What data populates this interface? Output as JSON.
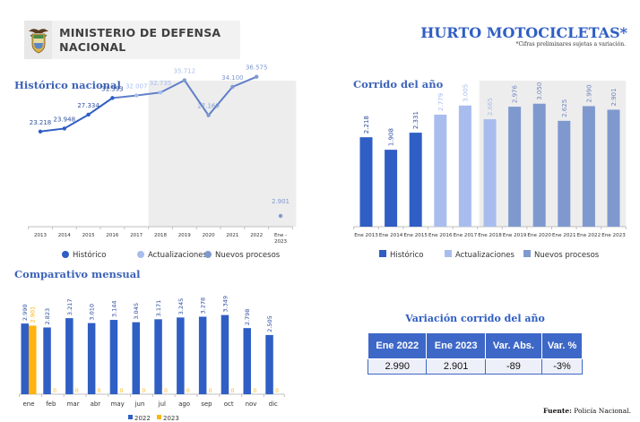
{
  "header": {
    "ministry": "MINISTERIO DE DEFENSA NACIONAL",
    "title": "HURTO MOTOCICLETAS*",
    "note": "*Cifras preliminares sujetas a variación."
  },
  "colors": {
    "historico": "#2f5ec4",
    "actualizaciones": "#a8bdee",
    "nuevos_procesos": "#7f99cf",
    "y2022": "#2f5ec4",
    "y2023": "#ffb30f",
    "shade": "#ededed",
    "title": "#3d63b8"
  },
  "sections": {
    "historico": "Histórico nacional",
    "corrido": "Corrido del año",
    "mensual": "Comparativo mensual"
  },
  "legend": {
    "historico": "Histórico",
    "actualizaciones": "Actualizaciones",
    "nuevos": "Nuevos procesos",
    "y2022": "2022",
    "y2023": "2023"
  },
  "variation_table": {
    "title": "Variación corrido del año",
    "headers": [
      "Ene 2022",
      "Ene 2023",
      "Var. Abs.",
      "Var. %"
    ],
    "values": [
      "2.990",
      "2.901",
      "-89",
      "-3%"
    ]
  },
  "source": {
    "label": "Fuente:",
    "text": "Policía Nacional."
  },
  "chart_data": [
    {
      "type": "line",
      "title": "Histórico nacional",
      "categories": [
        "2013",
        "2014",
        "2015",
        "2016",
        "2017",
        "2018",
        "2019",
        "2020",
        "2021",
        "2022",
        "Ene - 2023"
      ],
      "series": [
        {
          "name": "Histórico",
          "values": [
            23218,
            23948,
            27334,
            31393,
            null,
            null,
            null,
            null,
            null,
            null,
            null
          ]
        },
        {
          "name": "Actualizaciones",
          "values": [
            null,
            null,
            null,
            null,
            32007,
            32735,
            null,
            null,
            null,
            null,
            null
          ]
        },
        {
          "name": "Nuevos procesos",
          "values": [
            null,
            null,
            null,
            null,
            null,
            null,
            35712,
            27169,
            34100,
            36575,
            2901
          ]
        }
      ],
      "labels": [
        "23.218",
        "23.948",
        "27.334",
        "31.393",
        "32.007",
        "32.735",
        "35.712",
        "27.169",
        "34.100",
        "36.575",
        "2.901"
      ],
      "values": [
        23218,
        23948,
        27334,
        31393,
        32007,
        32735,
        35712,
        27169,
        34100,
        36575,
        2901
      ],
      "shaded_from": "2018",
      "legend": [
        "Histórico",
        "Actualizaciones",
        "Nuevos procesos"
      ],
      "legend_position": "bottom"
    },
    {
      "type": "bar",
      "title": "Corrido del año",
      "categories": [
        "Ene 2013",
        "Ene 2014",
        "Ene 2015",
        "Ene 2016",
        "Ene 2017",
        "Ene 2018",
        "Ene 2019",
        "Ene 2020",
        "Ene 2021",
        "Ene 2022",
        "Ene 2023"
      ],
      "values": [
        2218,
        1908,
        2331,
        2779,
        3005,
        2665,
        2976,
        3050,
        2625,
        2990,
        2901
      ],
      "labels": [
        "2.218",
        "1.908",
        "2.331",
        "2.779",
        "3.005",
        "2.665",
        "2.976",
        "3.050",
        "2.625",
        "2.990",
        "2.901"
      ],
      "series_assignment": [
        "Histórico",
        "Histórico",
        "Histórico",
        "Actualizaciones",
        "Actualizaciones",
        "Actualizaciones",
        "Nuevos procesos",
        "Nuevos procesos",
        "Nuevos procesos",
        "Nuevos procesos",
        "Nuevos procesos"
      ],
      "shaded_from": "Ene 2018",
      "legend": [
        "Histórico",
        "Actualizaciones",
        "Nuevos procesos"
      ],
      "legend_position": "bottom"
    },
    {
      "type": "bar",
      "title": "Comparativo mensual",
      "categories": [
        "ene",
        "feb",
        "mar",
        "abr",
        "may",
        "jun",
        "jul",
        "ago",
        "sep",
        "oct",
        "nov",
        "dic"
      ],
      "series": [
        {
          "name": "2022",
          "values": [
            2990,
            2823,
            3217,
            3010,
            3144,
            3045,
            3171,
            3245,
            3278,
            3349,
            2798,
            2505
          ],
          "labels": [
            "2.990",
            "2.823",
            "3.217",
            "3.010",
            "3.144",
            "3.045",
            "3.171",
            "3.245",
            "3.278",
            "3.349",
            "2.798",
            "2.505"
          ]
        },
        {
          "name": "2023",
          "values": [
            2901,
            0,
            0,
            0,
            0,
            0,
            0,
            0,
            0,
            0,
            0,
            0
          ],
          "labels": [
            "2.901",
            "0",
            "0",
            "0",
            "0",
            "0",
            "0",
            "0",
            "0",
            "0",
            "0",
            "0"
          ]
        }
      ],
      "legend": [
        "2022",
        "2023"
      ],
      "legend_position": "bottom"
    }
  ]
}
